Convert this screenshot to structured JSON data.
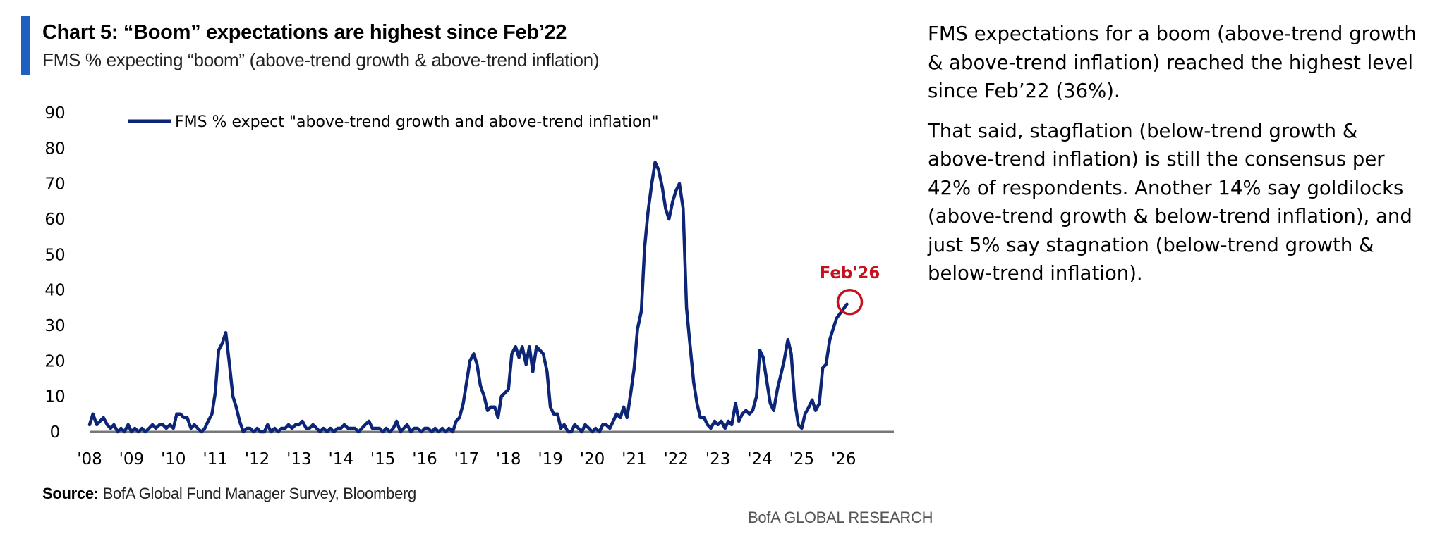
{
  "header": {
    "title": "Chart 5: “Boom” expectations are highest since Feb’22",
    "subtitle": "FMS % expecting “boom” (above-trend growth & above-trend inflation)"
  },
  "chart_data": {
    "type": "line",
    "title": "Chart 5: “Boom” expectations are highest since Feb’22",
    "subtitle": "FMS % expecting “boom” (above-trend growth & above-trend inflation)",
    "xlabel": "",
    "ylabel": "",
    "ylim": [
      0,
      90
    ],
    "yticks": [
      0,
      10,
      20,
      30,
      40,
      50,
      60,
      70,
      80,
      90
    ],
    "xlim": [
      2008,
      2027.2
    ],
    "xticks": [
      {
        "value": 2008,
        "label": "'08"
      },
      {
        "value": 2009,
        "label": "'09"
      },
      {
        "value": 2010,
        "label": "'10"
      },
      {
        "value": 2011,
        "label": "'11"
      },
      {
        "value": 2012,
        "label": "'12"
      },
      {
        "value": 2013,
        "label": "'13"
      },
      {
        "value": 2014,
        "label": "'14"
      },
      {
        "value": 2015,
        "label": "'15"
      },
      {
        "value": 2016,
        "label": "'16"
      },
      {
        "value": 2017,
        "label": "'17"
      },
      {
        "value": 2018,
        "label": "'18"
      },
      {
        "value": 2019,
        "label": "'19"
      },
      {
        "value": 2020,
        "label": "'20"
      },
      {
        "value": 2021,
        "label": "'21"
      },
      {
        "value": 2022,
        "label": "'22"
      },
      {
        "value": 2023,
        "label": "'23"
      },
      {
        "value": 2024,
        "label": "'24"
      },
      {
        "value": 2025,
        "label": "'25"
      },
      {
        "value": 2026,
        "label": "'26"
      }
    ],
    "legend": "top-left",
    "grid": false,
    "series": [
      {
        "name": "FMS % expect \"above-trend growth and above-trend inflation\"",
        "color": "#0c2577",
        "points": [
          [
            2008.0,
            2
          ],
          [
            2008.08,
            5
          ],
          [
            2008.17,
            2
          ],
          [
            2008.25,
            3
          ],
          [
            2008.33,
            4
          ],
          [
            2008.42,
            2
          ],
          [
            2008.5,
            1
          ],
          [
            2008.58,
            2
          ],
          [
            2008.67,
            0
          ],
          [
            2008.75,
            1
          ],
          [
            2008.83,
            0
          ],
          [
            2008.92,
            2
          ],
          [
            2009.0,
            0
          ],
          [
            2009.08,
            1
          ],
          [
            2009.17,
            0
          ],
          [
            2009.25,
            1
          ],
          [
            2009.33,
            0
          ],
          [
            2009.42,
            1
          ],
          [
            2009.5,
            2
          ],
          [
            2009.58,
            1
          ],
          [
            2009.67,
            2
          ],
          [
            2009.75,
            2
          ],
          [
            2009.83,
            1
          ],
          [
            2009.92,
            2
          ],
          [
            2010.0,
            1
          ],
          [
            2010.08,
            5
          ],
          [
            2010.17,
            5
          ],
          [
            2010.25,
            4
          ],
          [
            2010.33,
            4
          ],
          [
            2010.42,
            1
          ],
          [
            2010.5,
            2
          ],
          [
            2010.58,
            1
          ],
          [
            2010.67,
            0
          ],
          [
            2010.75,
            1
          ],
          [
            2010.83,
            3
          ],
          [
            2010.92,
            5
          ],
          [
            2011.0,
            11
          ],
          [
            2011.08,
            23
          ],
          [
            2011.17,
            25
          ],
          [
            2011.25,
            28
          ],
          [
            2011.33,
            20
          ],
          [
            2011.42,
            10
          ],
          [
            2011.5,
            7
          ],
          [
            2011.58,
            3
          ],
          [
            2011.67,
            0
          ],
          [
            2011.75,
            1
          ],
          [
            2011.83,
            1
          ],
          [
            2011.92,
            0
          ],
          [
            2012.0,
            1
          ],
          [
            2012.08,
            0
          ],
          [
            2012.17,
            0
          ],
          [
            2012.25,
            2
          ],
          [
            2012.33,
            0
          ],
          [
            2012.42,
            1
          ],
          [
            2012.5,
            0
          ],
          [
            2012.58,
            1
          ],
          [
            2012.67,
            1
          ],
          [
            2012.75,
            2
          ],
          [
            2012.83,
            1
          ],
          [
            2012.92,
            2
          ],
          [
            2013.0,
            2
          ],
          [
            2013.08,
            3
          ],
          [
            2013.17,
            1
          ],
          [
            2013.25,
            1
          ],
          [
            2013.33,
            2
          ],
          [
            2013.42,
            1
          ],
          [
            2013.5,
            0
          ],
          [
            2013.58,
            1
          ],
          [
            2013.67,
            0
          ],
          [
            2013.75,
            1
          ],
          [
            2013.83,
            0
          ],
          [
            2013.92,
            1
          ],
          [
            2014.0,
            1
          ],
          [
            2014.08,
            2
          ],
          [
            2014.17,
            1
          ],
          [
            2014.25,
            1
          ],
          [
            2014.33,
            1
          ],
          [
            2014.42,
            0
          ],
          [
            2014.5,
            1
          ],
          [
            2014.58,
            2
          ],
          [
            2014.67,
            3
          ],
          [
            2014.75,
            1
          ],
          [
            2014.83,
            1
          ],
          [
            2014.92,
            1
          ],
          [
            2015.0,
            0
          ],
          [
            2015.08,
            1
          ],
          [
            2015.17,
            0
          ],
          [
            2015.25,
            1
          ],
          [
            2015.33,
            3
          ],
          [
            2015.42,
            0
          ],
          [
            2015.5,
            1
          ],
          [
            2015.58,
            2
          ],
          [
            2015.67,
            0
          ],
          [
            2015.75,
            1
          ],
          [
            2015.83,
            1
          ],
          [
            2015.92,
            0
          ],
          [
            2016.0,
            1
          ],
          [
            2016.08,
            1
          ],
          [
            2016.17,
            0
          ],
          [
            2016.25,
            1
          ],
          [
            2016.33,
            0
          ],
          [
            2016.42,
            1
          ],
          [
            2016.5,
            0
          ],
          [
            2016.58,
            1
          ],
          [
            2016.67,
            0
          ],
          [
            2016.75,
            3
          ],
          [
            2016.83,
            4
          ],
          [
            2016.92,
            8
          ],
          [
            2017.0,
            14
          ],
          [
            2017.08,
            20
          ],
          [
            2017.17,
            22
          ],
          [
            2017.25,
            19
          ],
          [
            2017.33,
            13
          ],
          [
            2017.42,
            10
          ],
          [
            2017.5,
            6
          ],
          [
            2017.58,
            7
          ],
          [
            2017.67,
            7
          ],
          [
            2017.75,
            4
          ],
          [
            2017.83,
            10
          ],
          [
            2017.92,
            11
          ],
          [
            2018.0,
            12
          ],
          [
            2018.08,
            22
          ],
          [
            2018.17,
            24
          ],
          [
            2018.25,
            21
          ],
          [
            2018.33,
            24
          ],
          [
            2018.42,
            19
          ],
          [
            2018.5,
            24
          ],
          [
            2018.58,
            17
          ],
          [
            2018.67,
            24
          ],
          [
            2018.75,
            23
          ],
          [
            2018.83,
            22
          ],
          [
            2018.92,
            17
          ],
          [
            2019.0,
            7
          ],
          [
            2019.08,
            5
          ],
          [
            2019.17,
            5
          ],
          [
            2019.25,
            1
          ],
          [
            2019.33,
            2
          ],
          [
            2019.42,
            0
          ],
          [
            2019.5,
            0
          ],
          [
            2019.58,
            2
          ],
          [
            2019.67,
            1
          ],
          [
            2019.75,
            0
          ],
          [
            2019.83,
            2
          ],
          [
            2019.92,
            1
          ],
          [
            2020.0,
            0
          ],
          [
            2020.08,
            1
          ],
          [
            2020.17,
            0
          ],
          [
            2020.25,
            2
          ],
          [
            2020.33,
            2
          ],
          [
            2020.42,
            1
          ],
          [
            2020.5,
            3
          ],
          [
            2020.58,
            5
          ],
          [
            2020.67,
            4
          ],
          [
            2020.75,
            7
          ],
          [
            2020.83,
            4
          ],
          [
            2020.92,
            11
          ],
          [
            2021.0,
            18
          ],
          [
            2021.08,
            29
          ],
          [
            2021.17,
            34
          ],
          [
            2021.25,
            52
          ],
          [
            2021.33,
            62
          ],
          [
            2021.42,
            70
          ],
          [
            2021.5,
            76
          ],
          [
            2021.58,
            74
          ],
          [
            2021.67,
            69
          ],
          [
            2021.75,
            63
          ],
          [
            2021.83,
            60
          ],
          [
            2021.92,
            65
          ],
          [
            2022.0,
            68
          ],
          [
            2022.08,
            70
          ],
          [
            2022.17,
            63
          ],
          [
            2022.25,
            35
          ],
          [
            2022.33,
            25
          ],
          [
            2022.42,
            14
          ],
          [
            2022.5,
            8
          ],
          [
            2022.58,
            4
          ],
          [
            2022.67,
            4
          ],
          [
            2022.75,
            2
          ],
          [
            2022.83,
            1
          ],
          [
            2022.92,
            3
          ],
          [
            2023.0,
            2
          ],
          [
            2023.08,
            3
          ],
          [
            2023.17,
            1
          ],
          [
            2023.25,
            3
          ],
          [
            2023.33,
            2
          ],
          [
            2023.42,
            8
          ],
          [
            2023.5,
            3
          ],
          [
            2023.58,
            5
          ],
          [
            2023.67,
            6
          ],
          [
            2023.75,
            5
          ],
          [
            2023.83,
            6
          ],
          [
            2023.92,
            10
          ],
          [
            2024.0,
            23
          ],
          [
            2024.08,
            21
          ],
          [
            2024.17,
            14
          ],
          [
            2024.25,
            8
          ],
          [
            2024.33,
            6
          ],
          [
            2024.42,
            12
          ],
          [
            2024.5,
            16
          ],
          [
            2024.58,
            20
          ],
          [
            2024.67,
            26
          ],
          [
            2024.75,
            22
          ],
          [
            2024.83,
            9
          ],
          [
            2024.92,
            2
          ],
          [
            2025.0,
            1
          ],
          [
            2025.08,
            5
          ],
          [
            2025.17,
            7
          ],
          [
            2025.25,
            9
          ],
          [
            2025.33,
            6
          ],
          [
            2025.42,
            8
          ],
          [
            2025.5,
            18
          ],
          [
            2025.58,
            19
          ],
          [
            2025.67,
            26
          ],
          [
            2025.75,
            29
          ],
          [
            2025.83,
            32
          ],
          [
            2026.08,
            36
          ]
        ]
      }
    ],
    "annotations": [
      {
        "text": "Feb'26",
        "x": 2026.08,
        "y": 36,
        "color": "#c4121f",
        "marker": "circle"
      }
    ]
  },
  "source": {
    "label": "Source:",
    "text": "BofA Global Fund Manager Survey, Bloomberg"
  },
  "watermark": "BofA GLOBAL RESEARCH",
  "commentary": {
    "paragraphs": [
      "FMS expectations for a boom (above-trend growth & above-trend inflation) reached the highest level since Feb’22 (36%).",
      "That said, stagflation (below-trend growth & above-trend inflation) is still the consensus per 42% of respondents. Another 14% say goldilocks (above-trend growth & below-trend inflation), and just 5% say stagnation (below-trend growth & below-trend inflation)."
    ]
  },
  "colors": {
    "accent": "#1f5fbf",
    "series": "#0c2577",
    "annotation": "#c4121f",
    "axis": "#777777"
  }
}
